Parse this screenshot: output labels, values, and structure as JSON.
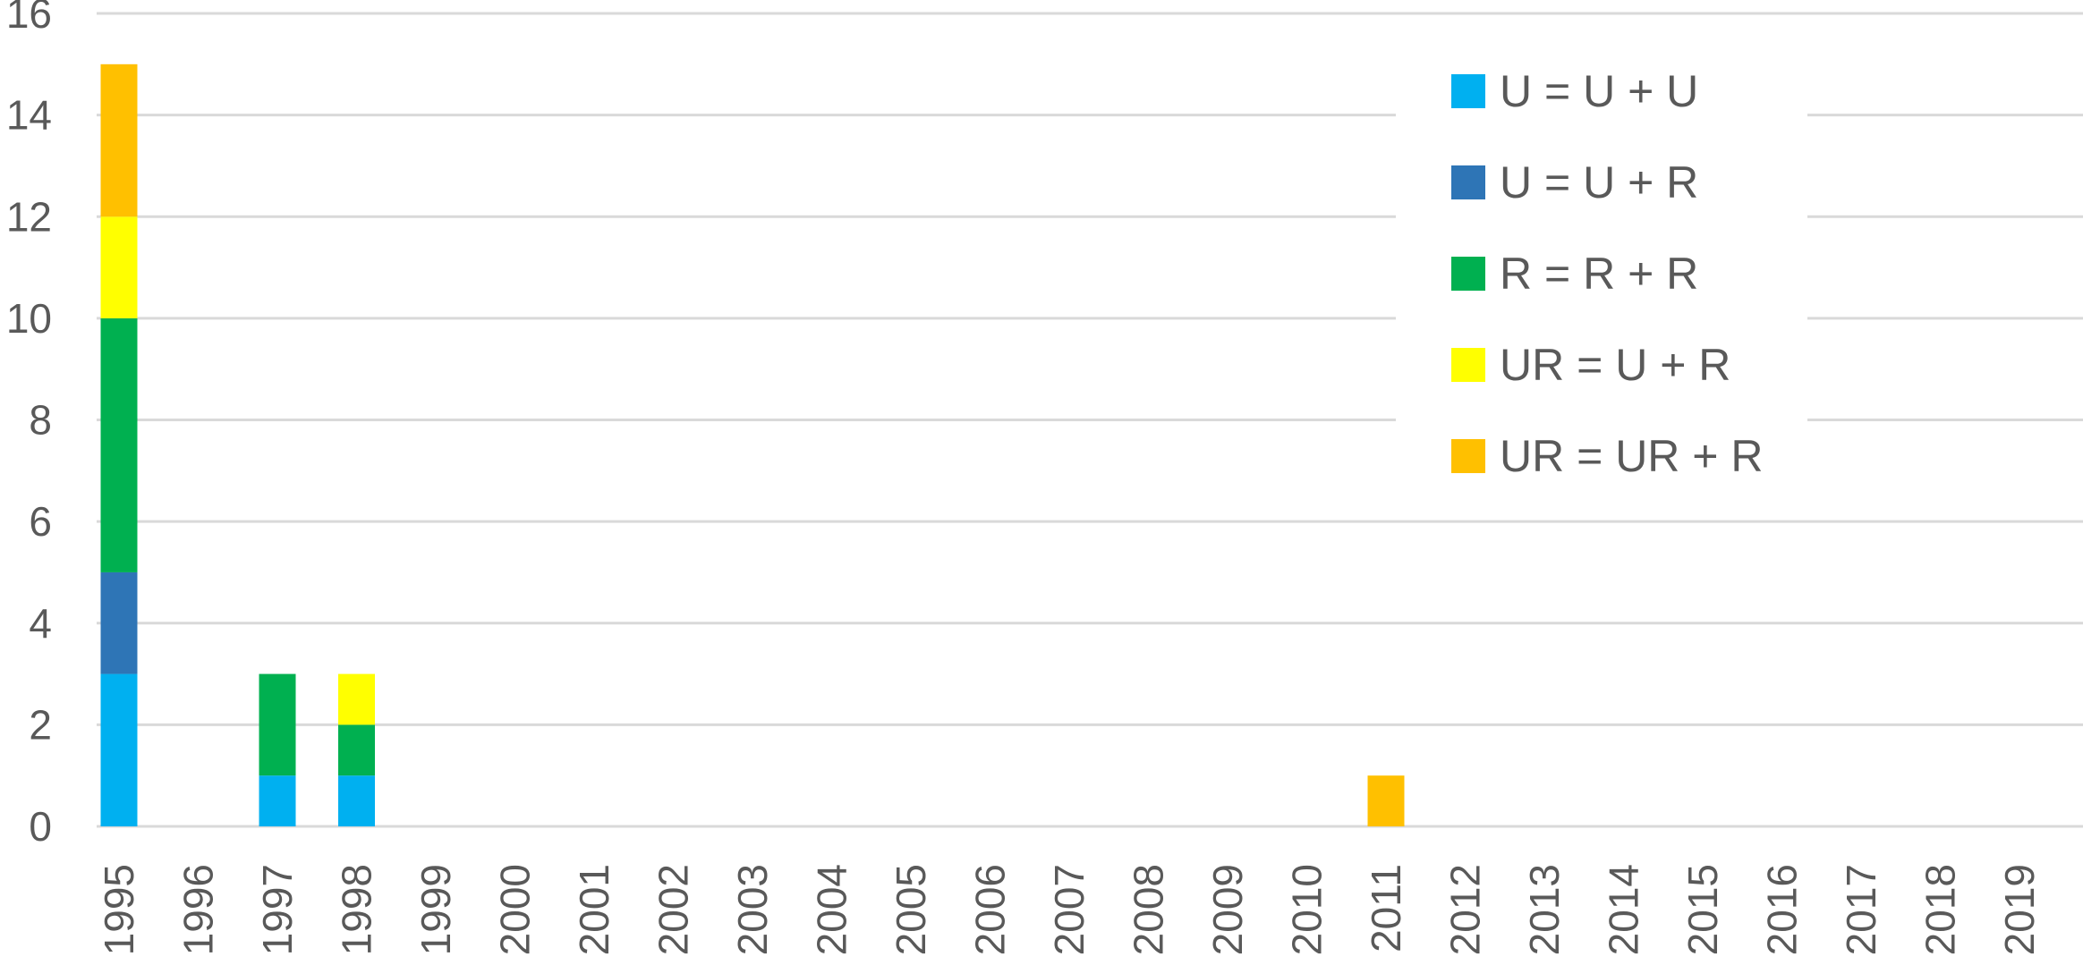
{
  "chart_data": {
    "type": "bar",
    "stacked": true,
    "categories": [
      "1995",
      "1996",
      "1997",
      "1998",
      "1999",
      "2000",
      "2001",
      "2002",
      "2003",
      "2004",
      "2005",
      "2006",
      "2007",
      "2008",
      "2009",
      "2010",
      "2011",
      "2012",
      "2013",
      "2014",
      "2015",
      "2016",
      "2017",
      "2018",
      "2019"
    ],
    "series": [
      {
        "name": "U = U + U",
        "color": "#00B0F0",
        "values": [
          3,
          0,
          1,
          1,
          0,
          0,
          0,
          0,
          0,
          0,
          0,
          0,
          0,
          0,
          0,
          0,
          0,
          0,
          0,
          0,
          0,
          0,
          0,
          0,
          0
        ]
      },
      {
        "name": "U = U + R",
        "color": "#2E75B6",
        "values": [
          2,
          0,
          0,
          0,
          0,
          0,
          0,
          0,
          0,
          0,
          0,
          0,
          0,
          0,
          0,
          0,
          0,
          0,
          0,
          0,
          0,
          0,
          0,
          0,
          0
        ]
      },
      {
        "name": "R = R + R",
        "color": "#00B050",
        "values": [
          5,
          0,
          2,
          1,
          0,
          0,
          0,
          0,
          0,
          0,
          0,
          0,
          0,
          0,
          0,
          0,
          0,
          0,
          0,
          0,
          0,
          0,
          0,
          0,
          0
        ]
      },
      {
        "name": "UR = U + R",
        "color": "#FFFF00",
        "values": [
          2,
          0,
          0,
          1,
          0,
          0,
          0,
          0,
          0,
          0,
          0,
          0,
          0,
          0,
          0,
          0,
          0,
          0,
          0,
          0,
          0,
          0,
          0,
          0,
          0
        ]
      },
      {
        "name": "UR = UR + R",
        "color": "#FFC000",
        "values": [
          3,
          0,
          0,
          0,
          0,
          0,
          0,
          0,
          0,
          0,
          0,
          0,
          0,
          0,
          0,
          0,
          1,
          0,
          0,
          0,
          0,
          0,
          0,
          0,
          0
        ]
      }
    ],
    "y_ticks": [
      "0",
      "2",
      "4",
      "6",
      "8",
      "10",
      "12",
      "14",
      "16"
    ],
    "ylim": [
      0,
      16
    ],
    "grid": true,
    "legend_position": "top-right",
    "title": "",
    "xlabel": "",
    "ylabel": ""
  }
}
